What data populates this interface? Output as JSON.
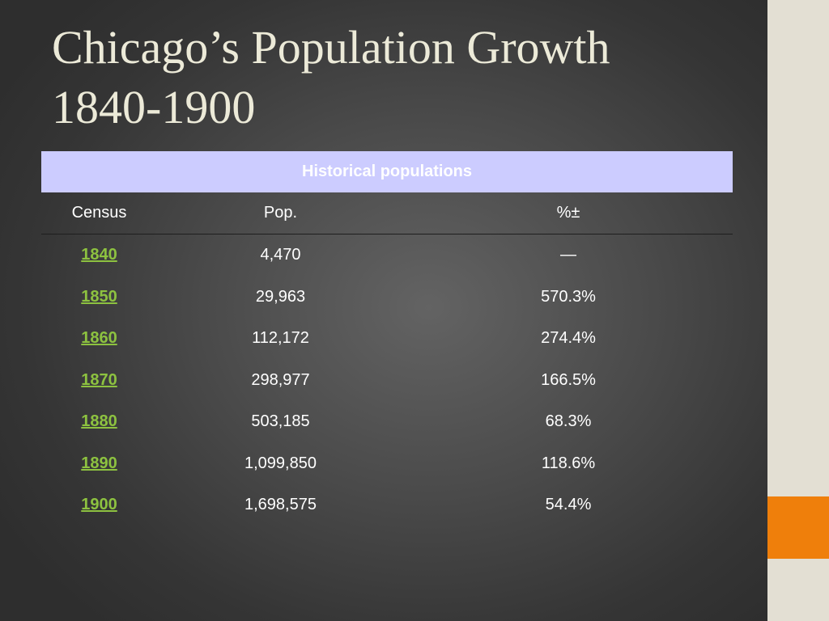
{
  "slide": {
    "title_line1": "Chicago’s Population Growth",
    "title_line2": "1840-1900"
  },
  "table": {
    "caption": "Historical populations",
    "headers": [
      "Census",
      "Pop.",
      "%±"
    ],
    "rows": [
      {
        "year": "1840",
        "pop": "4,470",
        "change": "—"
      },
      {
        "year": "1850",
        "pop": "29,963",
        "change": "570.3%"
      },
      {
        "year": "1860",
        "pop": "112,172",
        "change": "274.4%"
      },
      {
        "year": "1870",
        "pop": "298,977",
        "change": "166.5%"
      },
      {
        "year": "1880",
        "pop": "503,185",
        "change": "68.3%"
      },
      {
        "year": "1890",
        "pop": "1,099,850",
        "change": "118.6%"
      },
      {
        "year": "1900",
        "pop": "1,698,575",
        "change": "54.4%"
      }
    ]
  },
  "colors": {
    "caption_bg": "#ccccff",
    "year_link": "#8dc240",
    "side_panel": "#e3dfd3",
    "side_accent": "#ef7f0b"
  }
}
